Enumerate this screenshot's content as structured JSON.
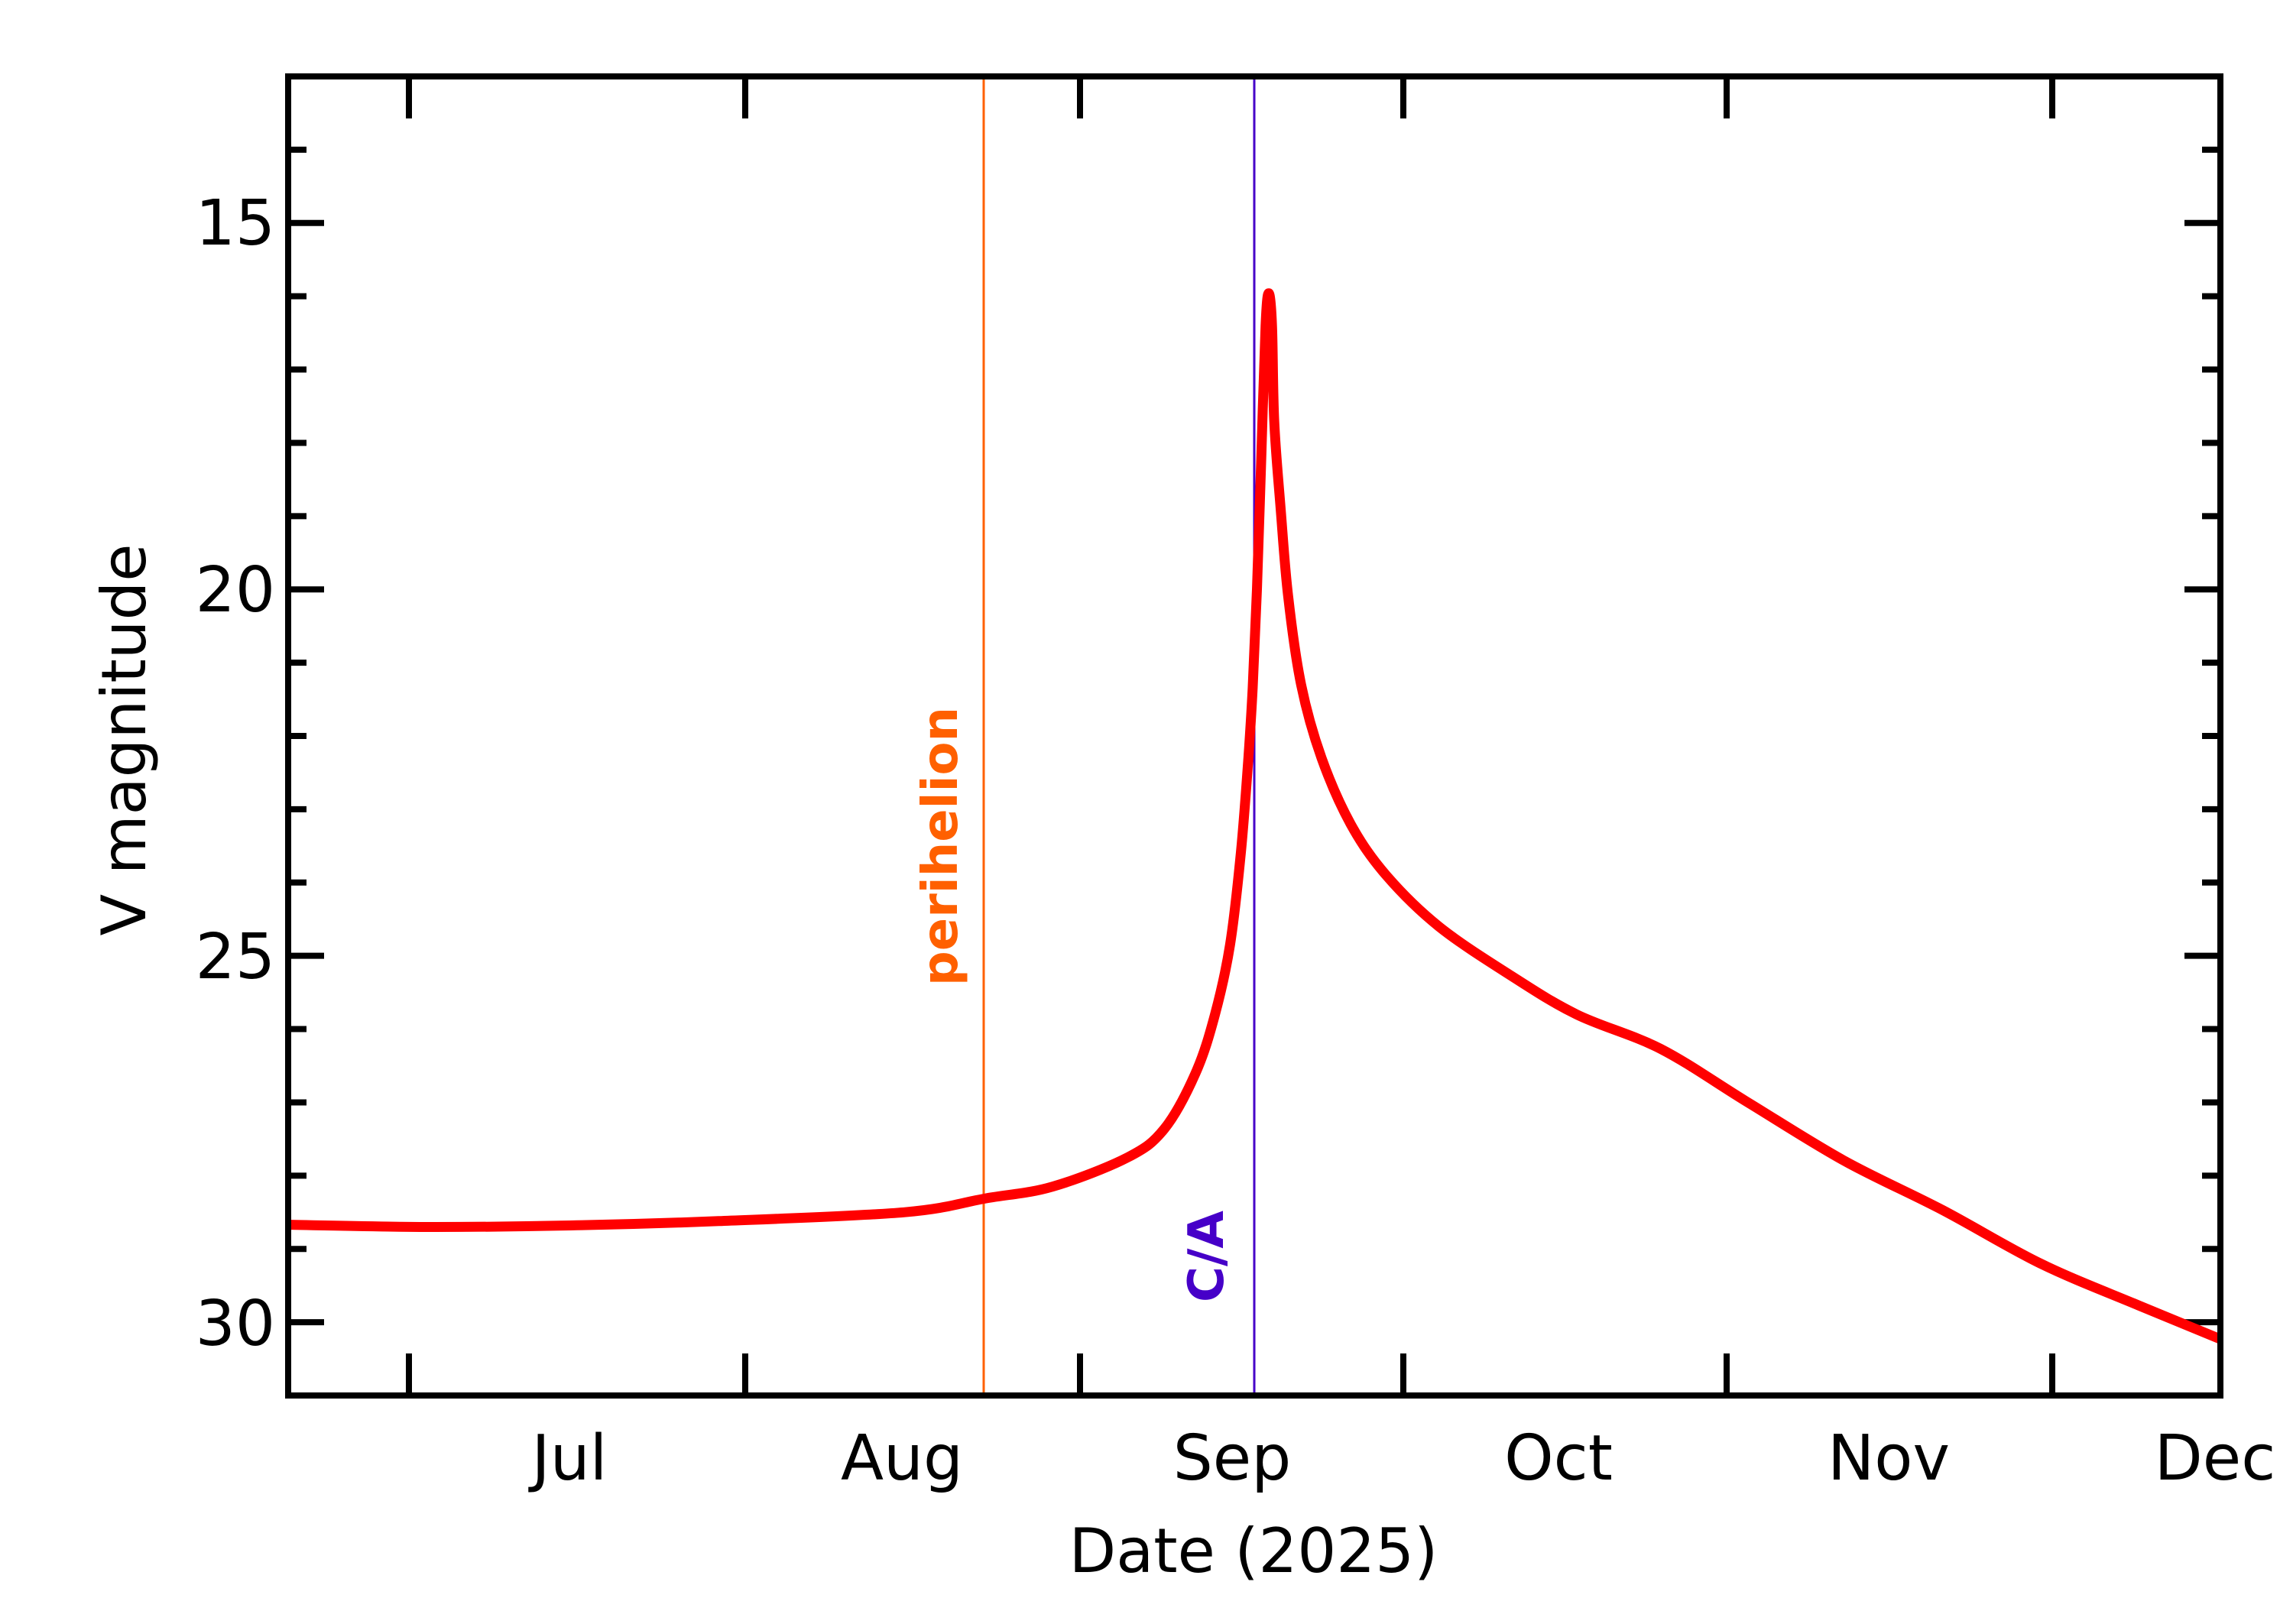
{
  "chart_data": {
    "type": "line",
    "title": "",
    "xlabel": "Date (2025)",
    "ylabel": "V magnitude",
    "y_inverted": true,
    "ylim": [
      31,
      13
    ],
    "xlim_days": [
      "2025-06-05",
      "2025-12-01"
    ],
    "grid": false,
    "legend": null,
    "x_tick_labels": [
      "Jul",
      "Aug",
      "Sep",
      "Oct",
      "Nov",
      "Dec"
    ],
    "y_tick_labels": [
      "15",
      "20",
      "25",
      "30"
    ],
    "y_major_ticks": [
      15,
      20,
      25,
      30
    ],
    "y_minor_step": 1,
    "series": [
      {
        "name": "V magnitude",
        "color": "#FF0000",
        "points": [
          {
            "date": "2025-06-05",
            "x": 0.0,
            "mag": 28.67
          },
          {
            "date": "2025-06-18",
            "x": 13.0,
            "mag": 28.7
          },
          {
            "date": "2025-07-01",
            "x": 26.2,
            "mag": 28.68
          },
          {
            "date": "2025-07-15",
            "x": 40.0,
            "mag": 28.62
          },
          {
            "date": "2025-08-01",
            "x": 57.2,
            "mag": 28.5
          },
          {
            "date": "2025-08-08",
            "x": 64.8,
            "mag": 28.31
          },
          {
            "date": "2025-08-15",
            "x": 71.0,
            "mag": 28.15
          },
          {
            "date": "2025-08-22",
            "x": 78.0,
            "mag": 27.75
          },
          {
            "date": "2025-08-26",
            "x": 81.4,
            "mag": 27.36
          },
          {
            "date": "2025-08-28",
            "x": 84.3,
            "mag": 26.6
          },
          {
            "date": "2025-08-30",
            "x": 86.1,
            "mag": 25.8
          },
          {
            "date": "2025-08-31",
            "x": 87.5,
            "mag": 24.85
          },
          {
            "date": "2025-09-01",
            "x": 88.5,
            "mag": 23.6
          },
          {
            "date": "2025-09-01",
            "x": 89.2,
            "mag": 22.3
          },
          {
            "date": "2025-09-02",
            "x": 89.6,
            "mag": 21.35
          },
          {
            "date": "2025-09-02",
            "x": 90.0,
            "mag": 20.0
          },
          {
            "date": "2025-09-02",
            "x": 90.4,
            "mag": 18.2
          },
          {
            "date": "2025-09-03",
            "x": 90.8,
            "mag": 16.4
          },
          {
            "date": "2025-09-03",
            "x": 91.1,
            "mag": 15.96
          },
          {
            "date": "2025-09-03",
            "x": 91.4,
            "mag": 16.4
          },
          {
            "date": "2025-09-03",
            "x": 91.6,
            "mag": 17.7
          },
          {
            "date": "2025-09-04",
            "x": 92.2,
            "mag": 18.9
          },
          {
            "date": "2025-09-04",
            "x": 92.9,
            "mag": 20.1
          },
          {
            "date": "2025-09-05",
            "x": 94.1,
            "mag": 21.3
          },
          {
            "date": "2025-09-07",
            "x": 96.0,
            "mag": 22.3
          },
          {
            "date": "2025-09-10",
            "x": 98.7,
            "mag": 23.2
          },
          {
            "date": "2025-09-13",
            "x": 102.0,
            "mag": 23.9
          },
          {
            "date": "2025-09-18",
            "x": 106.9,
            "mag": 24.6
          },
          {
            "date": "2025-09-25",
            "x": 113.6,
            "mag": 25.27
          },
          {
            "date": "2025-10-03",
            "x": 119.7,
            "mag": 25.8
          },
          {
            "date": "2025-10-11",
            "x": 127.5,
            "mag": 26.27
          },
          {
            "date": "2025-10-19",
            "x": 135.6,
            "mag": 27.0
          },
          {
            "date": "2025-10-28",
            "x": 144.6,
            "mag": 27.8
          },
          {
            "date": "2025-11-06",
            "x": 153.7,
            "mag": 28.47
          },
          {
            "date": "2025-11-15",
            "x": 162.8,
            "mag": 29.2
          },
          {
            "date": "2025-11-24",
            "x": 171.9,
            "mag": 29.77
          },
          {
            "date": "2025-12-01",
            "x": 179.5,
            "mag": 30.23
          }
        ]
      }
    ],
    "annotations": [
      {
        "label": "perihelion",
        "date": "2025-08-08",
        "color": "#FF6000",
        "type": "vertical-line"
      },
      {
        "label": "C/A",
        "date": "2025-09-03",
        "color": "#4600C8",
        "type": "vertical-line"
      }
    ],
    "peak": {
      "mag": 16.0,
      "date": "2025-09-03"
    }
  },
  "axes": {
    "xlabel": "Date (2025)",
    "ylabel": "V magnitude",
    "x_labels": [
      "Jul",
      "Aug",
      "Sep",
      "Oct",
      "Nov",
      "Dec"
    ],
    "y_labels": [
      "15",
      "20",
      "25",
      "30"
    ]
  },
  "annotations": {
    "perihelion": "perihelion",
    "ca": "C/A"
  },
  "colors": {
    "curve": "#FF0000",
    "perihelion": "#FF6000",
    "ca": "#4600C8",
    "frame": "#000000"
  }
}
